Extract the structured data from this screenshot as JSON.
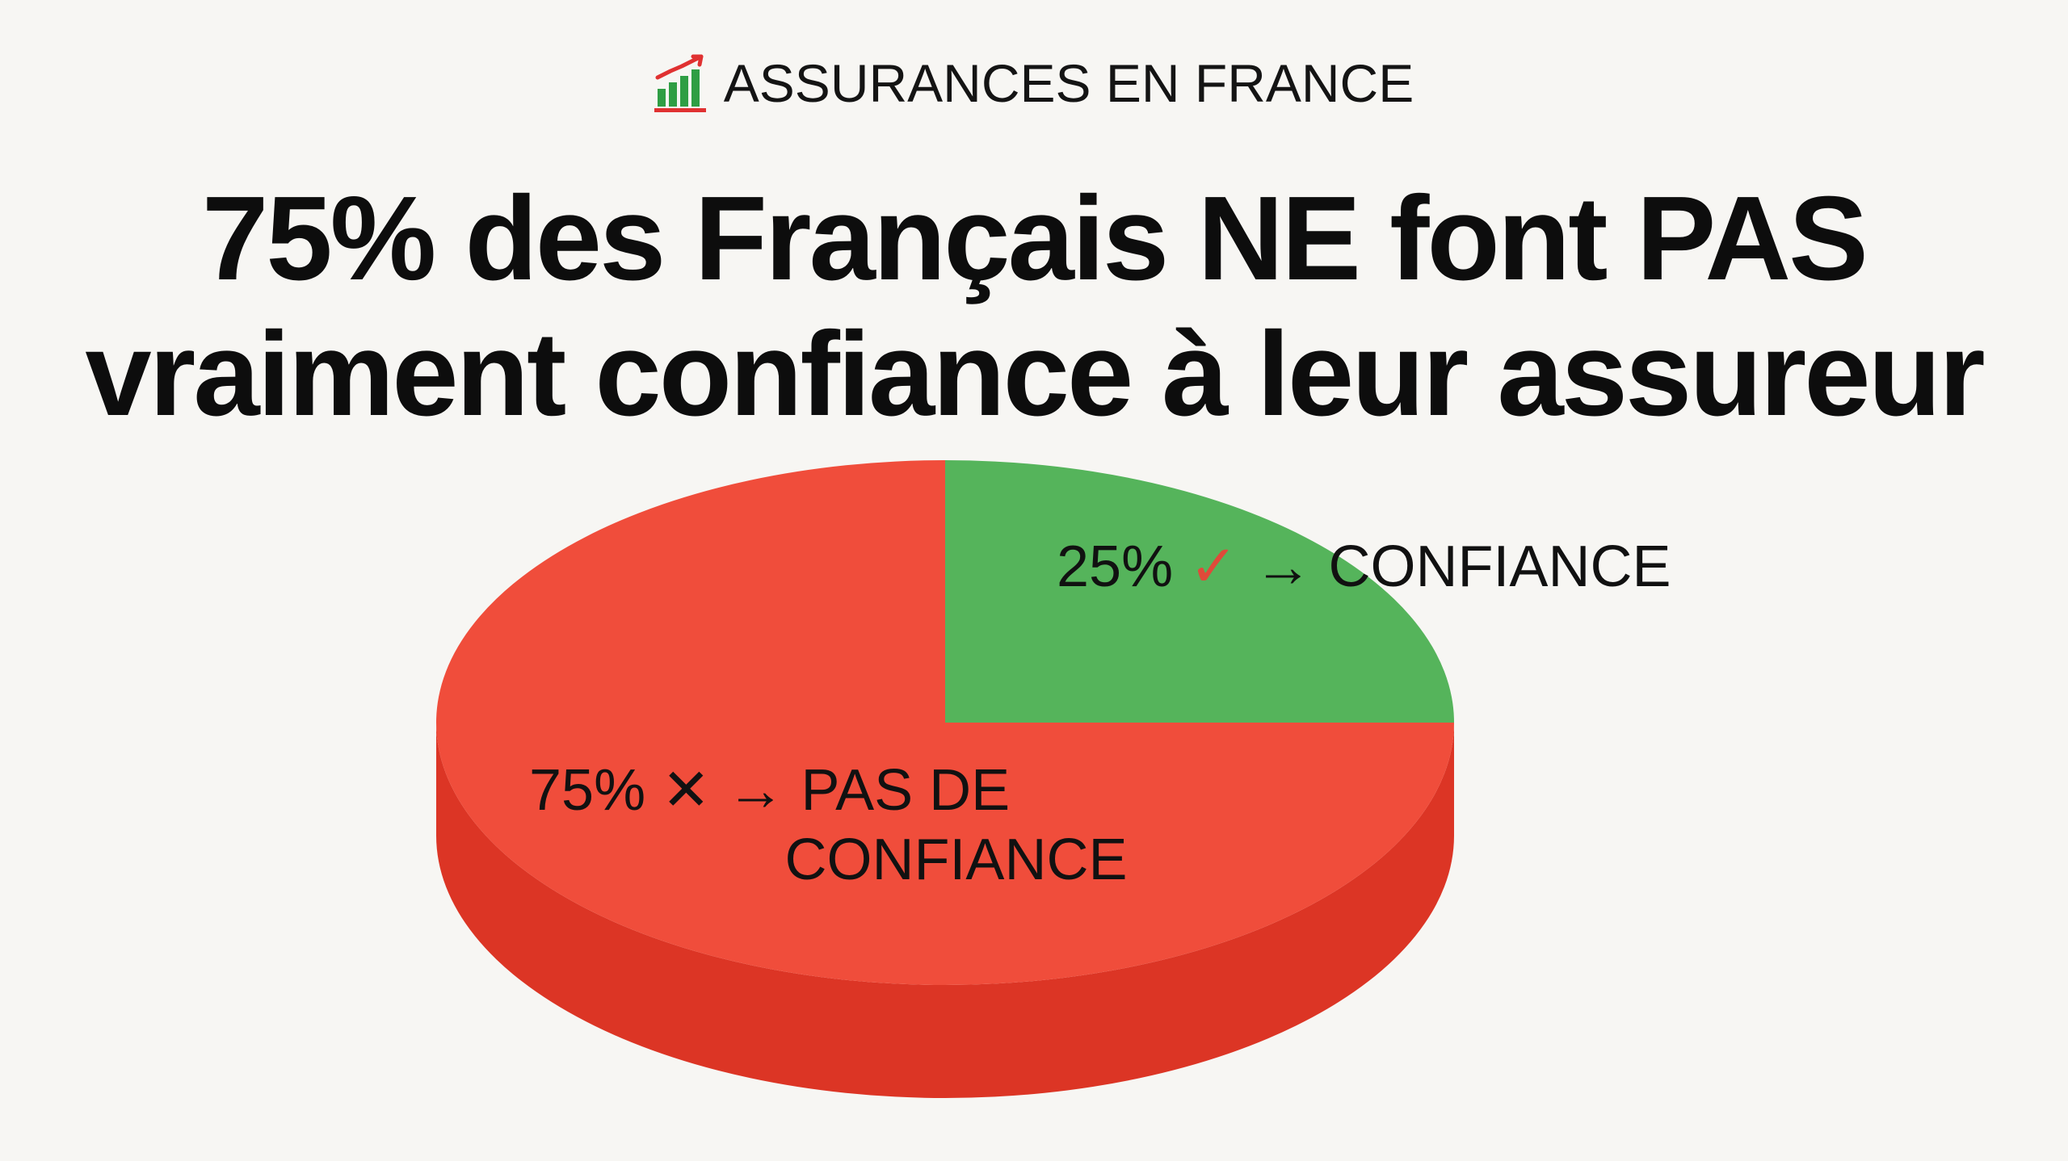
{
  "header": {
    "icon": "bar-chart-growth-icon",
    "label": "ASSURANCES EN FRANCE"
  },
  "headline": {
    "line1": "75% des Français NE font PAS",
    "line2": "vraiment confiance à leur assureur"
  },
  "chart_data": {
    "type": "pie",
    "style": "3d",
    "slices": [
      {
        "value": 25,
        "pct_text": "25%",
        "mark": "✓",
        "mark_icon": "check-icon",
        "arrow": "→",
        "label_lines": [
          "CONFIANCE"
        ],
        "color": "#55b45b",
        "side_color": "#3f9a46"
      },
      {
        "value": 75,
        "pct_text": "75%",
        "mark": "✕",
        "mark_icon": "cross-icon",
        "arrow": "→",
        "label_lines": [
          "PAS DE",
          "CONFIANCE"
        ],
        "color": "#f04d3b",
        "side_color": "#dc3525"
      }
    ]
  }
}
